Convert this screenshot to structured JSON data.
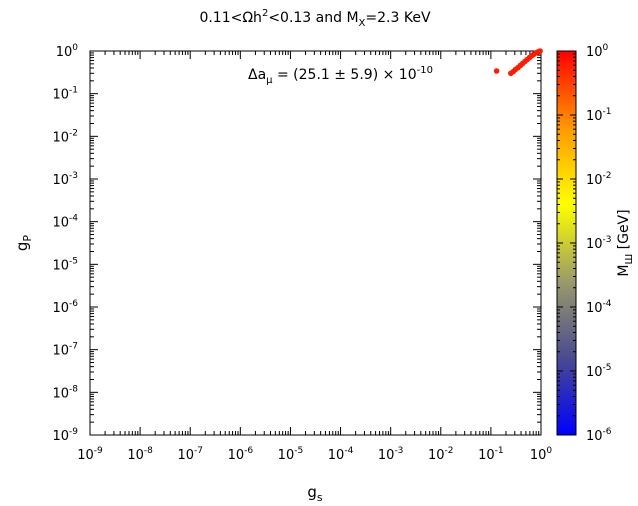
{
  "chart_data": {
    "type": "scatter",
    "title": {
      "base": "0.11<Ωh",
      "sup": "2",
      "middle": "<0.13 and M",
      "sub": "X",
      "tail": "=2.3 KeV"
    },
    "xlabel": {
      "base": "g",
      "sub": "s"
    },
    "ylabel": {
      "base": "g",
      "sub": "P"
    },
    "annotation": {
      "pre": "Δa",
      "sub": "μ",
      "mid": " = (25.1 ± 5.9) × 10",
      "sup": "-10"
    },
    "colorbar_label": {
      "base": "M",
      "sub": "Ш",
      "tail": " [GeV]"
    },
    "x_scale": "log",
    "y_scale": "log",
    "xlim": [
      1e-09,
      1
    ],
    "ylim": [
      1e-09,
      1
    ],
    "colorbar_lim": [
      1e-06,
      1
    ],
    "x_ticks": [
      {
        "base": "10",
        "exp": "-9"
      },
      {
        "base": "10",
        "exp": "-8"
      },
      {
        "base": "10",
        "exp": "-7"
      },
      {
        "base": "10",
        "exp": "-6"
      },
      {
        "base": "10",
        "exp": "-5"
      },
      {
        "base": "10",
        "exp": "-4"
      },
      {
        "base": "10",
        "exp": "-3"
      },
      {
        "base": "10",
        "exp": "-2"
      },
      {
        "base": "10",
        "exp": "-1"
      },
      {
        "base": "10",
        "exp": "0"
      }
    ],
    "y_ticks": [
      {
        "base": "10",
        "exp": "-9"
      },
      {
        "base": "10",
        "exp": "-8"
      },
      {
        "base": "10",
        "exp": "-7"
      },
      {
        "base": "10",
        "exp": "-6"
      },
      {
        "base": "10",
        "exp": "-5"
      },
      {
        "base": "10",
        "exp": "-4"
      },
      {
        "base": "10",
        "exp": "-3"
      },
      {
        "base": "10",
        "exp": "-2"
      },
      {
        "base": "10",
        "exp": "-1"
      },
      {
        "base": "10",
        "exp": "0"
      }
    ],
    "colorbar_ticks": [
      {
        "base": "10",
        "exp": "-6"
      },
      {
        "base": "10",
        "exp": "-5"
      },
      {
        "base": "10",
        "exp": "-4"
      },
      {
        "base": "10",
        "exp": "-3"
      },
      {
        "base": "10",
        "exp": "-2"
      },
      {
        "base": "10",
        "exp": "-1"
      },
      {
        "base": "10",
        "exp": "0"
      }
    ],
    "colormap": [
      "#0000ff",
      "#4a4a90",
      "#9a9a6a",
      "#ffff00",
      "#ff9900",
      "#ff0000"
    ],
    "points": [
      {
        "x": 0.13,
        "y": 0.34,
        "c": 0.6
      },
      {
        "x": 0.25,
        "y": 0.3,
        "c": 0.6
      },
      {
        "x": 0.28,
        "y": 0.33,
        "c": 0.6
      },
      {
        "x": 0.31,
        "y": 0.37,
        "c": 0.6
      },
      {
        "x": 0.35,
        "y": 0.41,
        "c": 0.6
      },
      {
        "x": 0.39,
        "y": 0.46,
        "c": 0.6
      },
      {
        "x": 0.43,
        "y": 0.51,
        "c": 0.6
      },
      {
        "x": 0.48,
        "y": 0.57,
        "c": 0.6
      },
      {
        "x": 0.53,
        "y": 0.63,
        "c": 0.6
      },
      {
        "x": 0.59,
        "y": 0.7,
        "c": 0.6
      },
      {
        "x": 0.65,
        "y": 0.77,
        "c": 0.6
      },
      {
        "x": 0.72,
        "y": 0.84,
        "c": 0.6
      },
      {
        "x": 0.8,
        "y": 0.91,
        "c": 0.6
      },
      {
        "x": 0.88,
        "y": 0.96,
        "c": 0.6
      },
      {
        "x": 0.96,
        "y": 1.0,
        "c": 0.6
      }
    ]
  }
}
